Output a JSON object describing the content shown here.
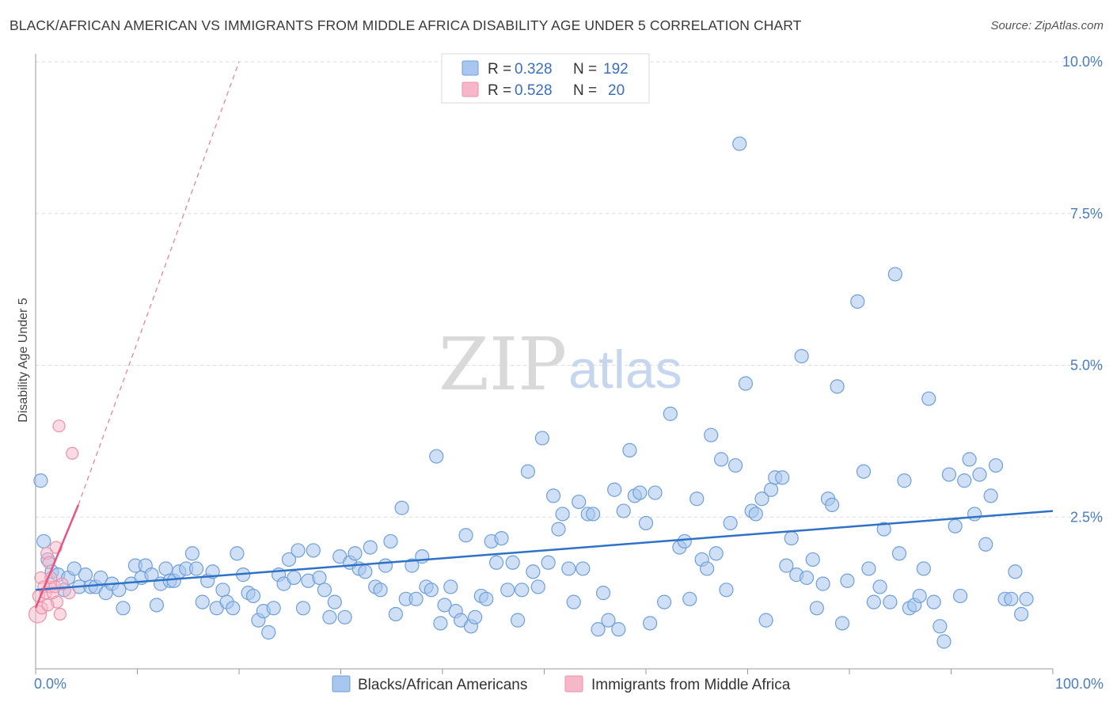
{
  "title": "BLACK/AFRICAN AMERICAN VS IMMIGRANTS FROM MIDDLE AFRICA DISABILITY AGE UNDER 5 CORRELATION CHART",
  "source": "Source: ZipAtlas.com",
  "watermark": {
    "zip": "ZIP",
    "atlas": "atlas"
  },
  "colors": {
    "blue_fill": "#a8c6ef",
    "blue_stroke": "#6f9fd8",
    "blue_line": "#2e72c8",
    "pink_fill": "#f6b8c9",
    "pink_stroke": "#ec8fa9",
    "pink_line": "#e8557f",
    "grid": "#dcdcdc",
    "tick_text": "#4a7cc0"
  },
  "legend_top": {
    "rows": [
      {
        "r_label": "R =",
        "r_value": "0.328",
        "n_label": "N =",
        "n_value": "192"
      },
      {
        "r_label": "R =",
        "r_value": "0.528",
        "n_label": "N =",
        "n_value": "20"
      }
    ]
  },
  "legend_bottom": [
    "Blacks/African Americans",
    "Immigrants from Middle Africa"
  ],
  "chart_data": {
    "type": "scatter",
    "title": "BLACK/AFRICAN AMERICAN VS IMMIGRANTS FROM MIDDLE AFRICA DISABILITY AGE UNDER 5 CORRELATION CHART",
    "xlabel": "",
    "ylabel": "Disability Age Under 5",
    "xlim": [
      0,
      100
    ],
    "ylim": [
      0,
      10
    ],
    "x_ticks": [
      {
        "value": 0,
        "label": "0.0%"
      },
      {
        "value": 100,
        "label": "100.0%"
      }
    ],
    "y_ticks": [
      {
        "value": 2.5,
        "label": "2.5%"
      },
      {
        "value": 5.0,
        "label": "5.0%"
      },
      {
        "value": 7.5,
        "label": "7.5%"
      },
      {
        "value": 10.0,
        "label": "10.0%"
      }
    ],
    "grid": true,
    "legend_position": "top-center",
    "series": [
      {
        "name": "Blacks/African Americans",
        "r": 0.328,
        "n": 192,
        "trend": {
          "x0": 0,
          "y0": 1.3,
          "x1": 100,
          "y1": 2.6
        },
        "points": [
          [
            0.5,
            3.1
          ],
          [
            0.8,
            2.1
          ],
          [
            1.2,
            1.8
          ],
          [
            1.6,
            1.6
          ],
          [
            2.2,
            1.55
          ],
          [
            2.8,
            1.3
          ],
          [
            3.2,
            1.5
          ],
          [
            3.8,
            1.65
          ],
          [
            4.3,
            1.35
          ],
          [
            4.9,
            1.55
          ],
          [
            5.4,
            1.35
          ],
          [
            5.9,
            1.35
          ],
          [
            6.4,
            1.5
          ],
          [
            6.9,
            1.25
          ],
          [
            7.5,
            1.4
          ],
          [
            8.2,
            1.3
          ],
          [
            8.6,
            1.0
          ],
          [
            9.4,
            1.4
          ],
          [
            9.8,
            1.7
          ],
          [
            10.4,
            1.5
          ],
          [
            10.8,
            1.7
          ],
          [
            11.4,
            1.55
          ],
          [
            11.9,
            1.05
          ],
          [
            12.3,
            1.4
          ],
          [
            12.8,
            1.65
          ],
          [
            13.2,
            1.45
          ],
          [
            13.6,
            1.45
          ],
          [
            14.1,
            1.6
          ],
          [
            14.8,
            1.65
          ],
          [
            15.4,
            1.9
          ],
          [
            15.8,
            1.65
          ],
          [
            16.4,
            1.1
          ],
          [
            16.9,
            1.45
          ],
          [
            17.4,
            1.6
          ],
          [
            17.8,
            1.0
          ],
          [
            18.4,
            1.3
          ],
          [
            18.8,
            1.1
          ],
          [
            19.4,
            1.0
          ],
          [
            19.8,
            1.9
          ],
          [
            20.4,
            1.55
          ],
          [
            20.9,
            1.25
          ],
          [
            21.4,
            1.2
          ],
          [
            21.9,
            0.8
          ],
          [
            22.4,
            0.95
          ],
          [
            22.9,
            0.6
          ],
          [
            23.4,
            1.0
          ],
          [
            23.9,
            1.55
          ],
          [
            24.4,
            1.4
          ],
          [
            24.9,
            1.8
          ],
          [
            25.4,
            1.5
          ],
          [
            25.8,
            1.95
          ],
          [
            26.3,
            1.0
          ],
          [
            26.8,
            1.45
          ],
          [
            27.3,
            1.95
          ],
          [
            27.9,
            1.5
          ],
          [
            28.4,
            1.3
          ],
          [
            28.9,
            0.85
          ],
          [
            29.4,
            1.1
          ],
          [
            29.9,
            1.85
          ],
          [
            30.4,
            0.85
          ],
          [
            30.9,
            1.75
          ],
          [
            31.4,
            1.9
          ],
          [
            31.8,
            1.65
          ],
          [
            32.4,
            1.6
          ],
          [
            32.9,
            2.0
          ],
          [
            33.4,
            1.35
          ],
          [
            33.9,
            1.3
          ],
          [
            34.4,
            1.7
          ],
          [
            34.9,
            2.1
          ],
          [
            35.4,
            0.9
          ],
          [
            36.0,
            2.65
          ],
          [
            36.4,
            1.15
          ],
          [
            37.0,
            1.7
          ],
          [
            37.4,
            1.15
          ],
          [
            38.0,
            1.85
          ],
          [
            38.4,
            1.35
          ],
          [
            38.9,
            1.3
          ],
          [
            39.4,
            3.5
          ],
          [
            39.8,
            0.75
          ],
          [
            40.2,
            1.05
          ],
          [
            40.8,
            1.35
          ],
          [
            41.3,
            0.95
          ],
          [
            41.8,
            0.8
          ],
          [
            42.3,
            2.2
          ],
          [
            42.8,
            0.7
          ],
          [
            43.2,
            0.85
          ],
          [
            43.8,
            1.2
          ],
          [
            44.3,
            1.15
          ],
          [
            44.8,
            2.1
          ],
          [
            45.3,
            1.75
          ],
          [
            45.8,
            2.15
          ],
          [
            46.4,
            1.3
          ],
          [
            46.9,
            1.75
          ],
          [
            47.4,
            0.8
          ],
          [
            47.8,
            1.3
          ],
          [
            48.4,
            3.25
          ],
          [
            48.9,
            1.6
          ],
          [
            49.4,
            1.35
          ],
          [
            49.8,
            3.8
          ],
          [
            50.4,
            1.75
          ],
          [
            50.9,
            2.85
          ],
          [
            51.4,
            2.3
          ],
          [
            51.8,
            2.55
          ],
          [
            52.4,
            1.65
          ],
          [
            52.9,
            1.1
          ],
          [
            53.4,
            2.75
          ],
          [
            53.8,
            1.65
          ],
          [
            54.3,
            2.55
          ],
          [
            54.8,
            2.55
          ],
          [
            55.3,
            0.65
          ],
          [
            55.8,
            1.25
          ],
          [
            56.3,
            0.8
          ],
          [
            56.9,
            2.95
          ],
          [
            57.3,
            0.65
          ],
          [
            57.8,
            2.6
          ],
          [
            58.4,
            3.6
          ],
          [
            58.9,
            2.85
          ],
          [
            59.4,
            2.9
          ],
          [
            60.0,
            2.4
          ],
          [
            60.4,
            0.75
          ],
          [
            60.9,
            2.9
          ],
          [
            61.8,
            1.1
          ],
          [
            62.4,
            4.2
          ],
          [
            63.3,
            2.0
          ],
          [
            63.8,
            2.1
          ],
          [
            64.3,
            1.15
          ],
          [
            65.0,
            2.8
          ],
          [
            65.5,
            1.8
          ],
          [
            66.0,
            1.65
          ],
          [
            66.4,
            3.85
          ],
          [
            66.9,
            1.9
          ],
          [
            67.4,
            3.45
          ],
          [
            67.9,
            1.3
          ],
          [
            68.3,
            2.4
          ],
          [
            68.8,
            3.35
          ],
          [
            69.2,
            8.65
          ],
          [
            69.8,
            4.7
          ],
          [
            70.4,
            2.6
          ],
          [
            70.8,
            2.55
          ],
          [
            71.4,
            2.8
          ],
          [
            71.8,
            0.8
          ],
          [
            72.3,
            2.95
          ],
          [
            72.7,
            3.15
          ],
          [
            73.4,
            3.15
          ],
          [
            73.8,
            1.7
          ],
          [
            74.3,
            2.15
          ],
          [
            74.8,
            1.55
          ],
          [
            75.3,
            5.15
          ],
          [
            75.8,
            1.5
          ],
          [
            76.4,
            1.8
          ],
          [
            76.8,
            1.0
          ],
          [
            77.4,
            1.4
          ],
          [
            77.9,
            2.8
          ],
          [
            78.3,
            2.7
          ],
          [
            78.8,
            4.65
          ],
          [
            79.3,
            0.75
          ],
          [
            79.8,
            1.45
          ],
          [
            80.8,
            6.05
          ],
          [
            81.4,
            3.25
          ],
          [
            81.9,
            1.65
          ],
          [
            82.4,
            1.1
          ],
          [
            83.0,
            1.35
          ],
          [
            83.4,
            2.3
          ],
          [
            84.0,
            1.1
          ],
          [
            84.5,
            6.5
          ],
          [
            84.9,
            1.9
          ],
          [
            85.4,
            3.1
          ],
          [
            85.9,
            1.0
          ],
          [
            86.4,
            1.05
          ],
          [
            86.9,
            1.2
          ],
          [
            87.3,
            1.65
          ],
          [
            87.8,
            4.45
          ],
          [
            88.3,
            1.1
          ],
          [
            88.9,
            0.7
          ],
          [
            89.3,
            0.45
          ],
          [
            89.8,
            3.2
          ],
          [
            90.4,
            2.35
          ],
          [
            90.9,
            1.2
          ],
          [
            91.3,
            3.1
          ],
          [
            91.8,
            3.45
          ],
          [
            92.3,
            2.55
          ],
          [
            92.8,
            3.2
          ],
          [
            93.4,
            2.05
          ],
          [
            93.9,
            2.85
          ],
          [
            94.4,
            3.35
          ],
          [
            95.3,
            1.15
          ],
          [
            95.9,
            1.15
          ],
          [
            96.3,
            1.6
          ],
          [
            96.9,
            0.9
          ],
          [
            97.4,
            1.15
          ]
        ]
      },
      {
        "name": "Immigrants from Middle Africa",
        "r": 0.528,
        "n": 20,
        "trend": {
          "x0": 0,
          "y0": 1.0,
          "x1": 4.2,
          "y1": 2.7
        },
        "trend_extended": {
          "x0": 4.2,
          "y0": 2.7,
          "x1": 20,
          "y1": 10.0
        },
        "points": [
          [
            0.2,
            0.9
          ],
          [
            0.3,
            1.2
          ],
          [
            0.5,
            1.5
          ],
          [
            0.6,
            1.0
          ],
          [
            0.8,
            1.35
          ],
          [
            1.0,
            1.25
          ],
          [
            1.1,
            1.9
          ],
          [
            1.3,
            1.75
          ],
          [
            1.4,
            1.35
          ],
          [
            1.5,
            1.5
          ],
          [
            1.7,
            1.25
          ],
          [
            1.9,
            1.35
          ],
          [
            2.0,
            2.0
          ],
          [
            2.1,
            1.1
          ],
          [
            2.3,
            4.0
          ],
          [
            2.4,
            0.9
          ],
          [
            2.6,
            1.4
          ],
          [
            3.6,
            3.55
          ],
          [
            3.3,
            1.25
          ],
          [
            1.2,
            1.05
          ]
        ]
      }
    ]
  }
}
